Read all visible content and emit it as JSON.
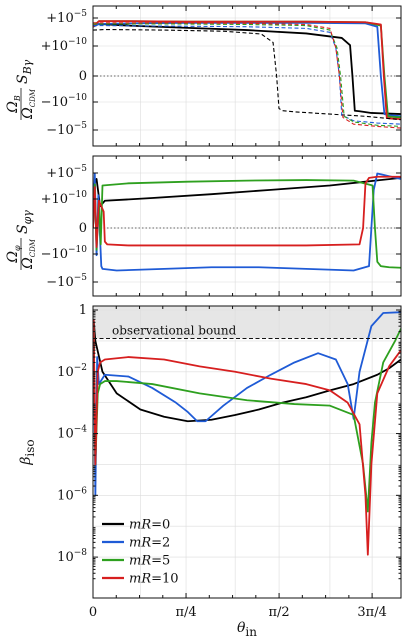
{
  "chart_data": [
    {
      "type": "line",
      "panel": "top",
      "ylabel": "Ω_B / Ω_CDM S_Bγ",
      "ylabel_parts": {
        "num": "Ω_B",
        "den": "Ω_CDM",
        "sym": "S_Bγ"
      },
      "yscale": "symlog",
      "yticks": [
        "+10^-5",
        "+10^-10",
        "0",
        "-10^-10",
        "-10^-5"
      ],
      "xlim": [
        0,
        2.6
      ],
      "grid": true,
      "zero_line": "dotted",
      "series": [
        {
          "color": "#000000",
          "style": "solid",
          "x": [
            0.0,
            0.05,
            0.3,
            0.8,
            1.3,
            1.8,
            2.1,
            2.17,
            2.19,
            2.21,
            2.25,
            2.35,
            2.6
          ],
          "y": [
            0.88,
            0.93,
            0.9,
            0.86,
            0.82,
            0.76,
            0.68,
            0.55,
            0.0,
            -0.62,
            -0.63,
            -0.66,
            -0.68
          ]
        },
        {
          "color": "#1f5bd6",
          "style": "solid",
          "x": [
            0.0,
            0.05,
            0.3,
            0.8,
            1.3,
            1.8,
            2.3,
            2.4,
            2.43,
            2.46,
            2.5,
            2.6
          ],
          "y": [
            0.88,
            0.93,
            0.94,
            0.95,
            0.95,
            0.95,
            0.94,
            0.88,
            0.0,
            -0.68,
            -0.7,
            -0.72
          ]
        },
        {
          "color": "#2ea01f",
          "style": "solid",
          "x": [
            0.0,
            0.05,
            0.3,
            0.8,
            1.3,
            1.8,
            2.3,
            2.43,
            2.46,
            2.49,
            2.53,
            2.6
          ],
          "y": [
            0.88,
            0.98,
            0.98,
            0.97,
            0.97,
            0.97,
            0.96,
            0.9,
            0.0,
            -0.72,
            -0.73,
            -0.74
          ]
        },
        {
          "color": "#d71f1f",
          "style": "solid",
          "x": [
            0.0,
            0.05,
            0.3,
            0.8,
            1.3,
            1.8,
            2.3,
            2.43,
            2.455,
            2.48,
            2.52,
            2.6
          ],
          "y": [
            0.88,
            0.98,
            0.98,
            0.97,
            0.97,
            0.97,
            0.96,
            0.92,
            0.0,
            -0.75,
            -0.76,
            -0.77
          ]
        },
        {
          "color": "#000000",
          "style": "dashed",
          "x": [
            0.0,
            0.1,
            0.6,
            1.1,
            1.42,
            1.52,
            1.55,
            1.57,
            1.6,
            1.7,
            2.0,
            2.3,
            2.6
          ],
          "y": [
            0.82,
            0.83,
            0.82,
            0.8,
            0.75,
            0.6,
            0.0,
            -0.58,
            -0.62,
            -0.64,
            -0.68,
            -0.72,
            -0.78
          ]
        },
        {
          "color": "#1f5bd6",
          "style": "dashed",
          "x": [
            0.0,
            0.1,
            0.7,
            1.3,
            1.8,
            2.0,
            2.05,
            2.08,
            2.1,
            2.2,
            2.4,
            2.6
          ],
          "y": [
            0.9,
            0.9,
            0.89,
            0.88,
            0.85,
            0.78,
            0.5,
            0.0,
            -0.7,
            -0.8,
            -0.84,
            -0.86
          ]
        },
        {
          "color": "#2ea01f",
          "style": "dashed",
          "x": [
            0.0,
            0.1,
            0.7,
            1.3,
            1.8,
            2.0,
            2.06,
            2.09,
            2.12,
            2.2,
            2.4,
            2.6
          ],
          "y": [
            0.93,
            0.93,
            0.93,
            0.92,
            0.9,
            0.82,
            0.5,
            0.0,
            -0.72,
            -0.82,
            -0.88,
            -0.9
          ]
        },
        {
          "color": "#d71f1f",
          "style": "dashed",
          "x": [
            0.0,
            0.1,
            0.7,
            1.3,
            1.8,
            2.0,
            2.05,
            2.08,
            2.11,
            2.2,
            2.4,
            2.6
          ],
          "y": [
            0.95,
            0.95,
            0.95,
            0.94,
            0.92,
            0.85,
            0.5,
            0.0,
            -0.74,
            -0.86,
            -0.9,
            -0.93
          ]
        }
      ]
    },
    {
      "type": "line",
      "panel": "middle",
      "ylabel": "Ω_φ / Ω_CDM S_φγ",
      "ylabel_parts": {
        "num": "Ω_φ",
        "den": "Ω_CDM",
        "sym": "S_φγ"
      },
      "yscale": "symlog",
      "yticks": [
        "+10^-5",
        "+10^-10",
        "0",
        "-10^-10",
        "-10^-5"
      ],
      "xlim": [
        0,
        2.6
      ],
      "grid": true,
      "zero_line": "dotted",
      "series": [
        {
          "color": "#000000",
          "style": "solid",
          "x": [
            0.0,
            0.01,
            0.03,
            0.06,
            0.1,
            0.5,
            1.0,
            1.5,
            2.0,
            2.3,
            2.6
          ],
          "y": [
            0.0,
            0.8,
            0.9,
            0.4,
            0.5,
            0.55,
            0.62,
            0.7,
            0.78,
            0.85,
            0.92
          ]
        },
        {
          "color": "#1f5bd6",
          "style": "solid",
          "x": [
            0.0,
            0.015,
            0.03,
            0.045,
            0.06,
            0.07,
            0.08,
            0.2,
            0.6,
            1.0,
            1.4,
            1.8,
            2.2,
            2.33,
            2.35,
            2.37,
            2.4,
            2.5,
            2.6
          ],
          "y": [
            0.0,
            1.0,
            -0.5,
            0.6,
            -0.2,
            -0.7,
            -0.75,
            -0.78,
            -0.75,
            -0.72,
            -0.72,
            -0.75,
            -0.78,
            -0.7,
            0.0,
            0.7,
            1.0,
            0.95,
            0.9
          ]
        },
        {
          "color": "#2ea01f",
          "style": "solid",
          "x": [
            0.0,
            0.015,
            0.03,
            0.05,
            0.065,
            0.08,
            0.3,
            0.8,
            1.3,
            1.8,
            2.2,
            2.36,
            2.38,
            2.4,
            2.43,
            2.5,
            2.6
          ],
          "y": [
            0.0,
            0.8,
            -0.4,
            0.5,
            -0.3,
            0.78,
            0.82,
            0.85,
            0.87,
            0.88,
            0.87,
            0.78,
            0.0,
            -0.62,
            -0.7,
            -0.72,
            -0.73
          ]
        },
        {
          "color": "#d71f1f",
          "style": "solid",
          "x": [
            0.0,
            0.015,
            0.03,
            0.05,
            0.07,
            0.09,
            0.1,
            0.12,
            0.3,
            0.8,
            1.3,
            1.8,
            2.25,
            2.28,
            2.3,
            2.33,
            2.4,
            2.5,
            2.6
          ],
          "y": [
            0.0,
            0.75,
            -0.35,
            0.5,
            0.4,
            0.3,
            -0.25,
            -0.3,
            -0.32,
            -0.32,
            -0.32,
            -0.32,
            -0.3,
            0.0,
            0.82,
            0.92,
            0.94,
            0.94,
            0.94
          ]
        }
      ]
    },
    {
      "type": "line",
      "panel": "bottom",
      "xlabel": "θ_in",
      "ylabel": "β_iso",
      "yscale": "log",
      "ylim": [
        1e-09,
        1
      ],
      "xlim": [
        0,
        2.6
      ],
      "xticks": [
        "0",
        "π/4",
        "π/2",
        "3π/4"
      ],
      "yticks": [
        "1",
        "10^-2",
        "10^-4",
        "10^-6",
        "10^-8"
      ],
      "grid": true,
      "shaded_region": {
        "ymin": 0.12,
        "ymax": 1
      },
      "annotation": "observational bound",
      "bound_value": 0.12,
      "legend_position": "bottom-left",
      "series": [
        {
          "name": "mR=0",
          "color": "#000000",
          "x": [
            0.005,
            0.02,
            0.08,
            0.2,
            0.4,
            0.6,
            0.8,
            1.0,
            1.2,
            1.4,
            1.6,
            1.8,
            2.0,
            2.2,
            2.4,
            2.5,
            2.6
          ],
          "y": [
            0.5,
            0.1,
            0.01,
            0.002,
            0.0006,
            0.00035,
            0.00025,
            0.00028,
            0.0004,
            0.0006,
            0.001,
            0.0015,
            0.0025,
            0.004,
            0.008,
            0.013,
            0.025
          ]
        },
        {
          "name": "mR=2",
          "color": "#1f5bd6",
          "x": [
            0.005,
            0.02,
            0.035,
            0.05,
            0.1,
            0.3,
            0.5,
            0.7,
            0.8,
            0.88,
            0.95,
            1.1,
            1.3,
            1.5,
            1.7,
            1.9,
            2.05,
            2.15,
            2.2,
            2.25,
            2.35,
            2.45,
            2.6
          ],
          "y": [
            0.5,
            1e-06,
            0.03,
            0.004,
            0.008,
            0.007,
            0.003,
            0.001,
            0.0005,
            0.00025,
            0.00025,
            0.0008,
            0.003,
            0.008,
            0.02,
            0.04,
            0.025,
            0.004,
            0.0003,
            0.01,
            0.3,
            0.8,
            0.85
          ]
        },
        {
          "name": "mR=5",
          "color": "#2ea01f",
          "x": [
            0.005,
            0.02,
            0.04,
            0.06,
            0.1,
            0.2,
            0.5,
            0.9,
            1.3,
            1.7,
            2.0,
            2.2,
            2.28,
            2.32,
            2.35,
            2.38,
            2.45,
            2.55,
            2.6
          ],
          "y": [
            0.5,
            1e-05,
            0.002,
            0.004,
            0.005,
            0.005,
            0.004,
            0.002,
            0.0012,
            0.0009,
            0.0008,
            0.0004,
            1e-05,
            3e-07,
            5e-05,
            0.001,
            0.02,
            0.1,
            0.25
          ]
        },
        {
          "name": "mR=10",
          "color": "#d71f1f",
          "x": [
            0.005,
            0.02,
            0.04,
            0.06,
            0.1,
            0.3,
            0.6,
            0.9,
            1.2,
            1.5,
            1.8,
            2.0,
            2.15,
            2.25,
            2.3,
            2.32,
            2.35,
            2.4,
            2.5,
            2.6
          ],
          "y": [
            0.5,
            1e-05,
            0.01,
            0.02,
            0.025,
            0.03,
            0.025,
            0.015,
            0.01,
            0.006,
            0.004,
            0.0025,
            0.001,
            0.0002,
            1e-06,
            1.2e-08,
            1e-05,
            0.002,
            0.015,
            0.05
          ]
        }
      ]
    }
  ]
}
